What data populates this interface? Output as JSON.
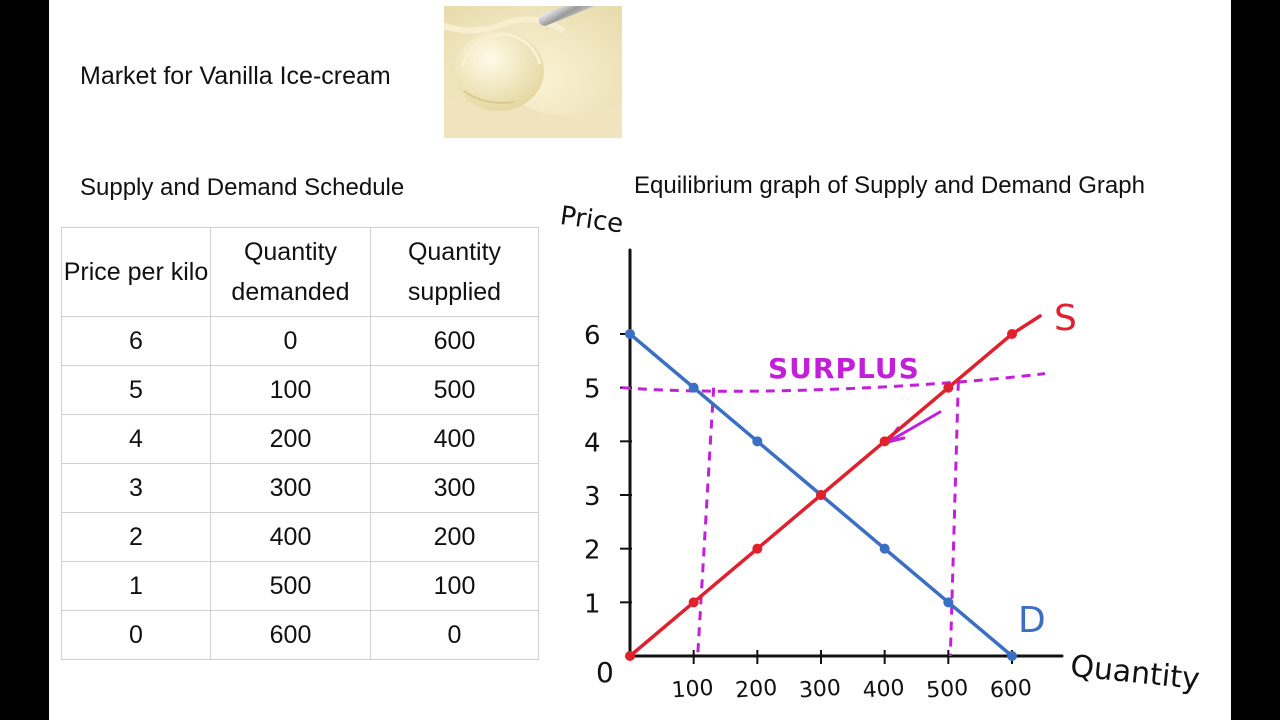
{
  "slide": {
    "title": "Market for Vanilla Ice-cream",
    "table_heading": "Supply and Demand Schedule",
    "graph_heading": "Equilibrium graph of Supply and Demand Graph"
  },
  "table": {
    "headers": [
      "Price per kilo",
      "Quantity demanded",
      "Quantity supplied"
    ],
    "rows": [
      [
        "6",
        "0",
        "600"
      ],
      [
        "5",
        "100",
        "500"
      ],
      [
        "4",
        "200",
        "400"
      ],
      [
        "3",
        "300",
        "300"
      ],
      [
        "2",
        "400",
        "200"
      ],
      [
        "1",
        "500",
        "100"
      ],
      [
        "0",
        "600",
        "0"
      ]
    ]
  },
  "colors": {
    "demand": "#3a6fc4",
    "supply": "#e0202c",
    "surplus": "#c21fd9",
    "axis": "#111111"
  },
  "chart_data": {
    "type": "line",
    "ylabel": "Price",
    "xlabel": "Quantity",
    "origin_label": "0",
    "xlim": [
      0,
      600
    ],
    "ylim": [
      0,
      6
    ],
    "x_ticks": [
      "100",
      "200",
      "300",
      "400",
      "500",
      "600"
    ],
    "y_ticks": [
      "1",
      "2",
      "3",
      "4",
      "5",
      "6"
    ],
    "series": [
      {
        "name": "D",
        "x": [
          0,
          100,
          200,
          300,
          400,
          500,
          600
        ],
        "y": [
          6,
          5,
          4,
          3,
          2,
          1,
          0
        ]
      },
      {
        "name": "S",
        "x": [
          0,
          100,
          200,
          300,
          400,
          500,
          600
        ],
        "y": [
          0,
          1,
          2,
          3,
          4,
          5,
          6
        ]
      }
    ],
    "annotations": [
      {
        "text": "SURPLUS",
        "price_line": 5,
        "quantity_range": [
          100,
          500
        ]
      }
    ]
  }
}
